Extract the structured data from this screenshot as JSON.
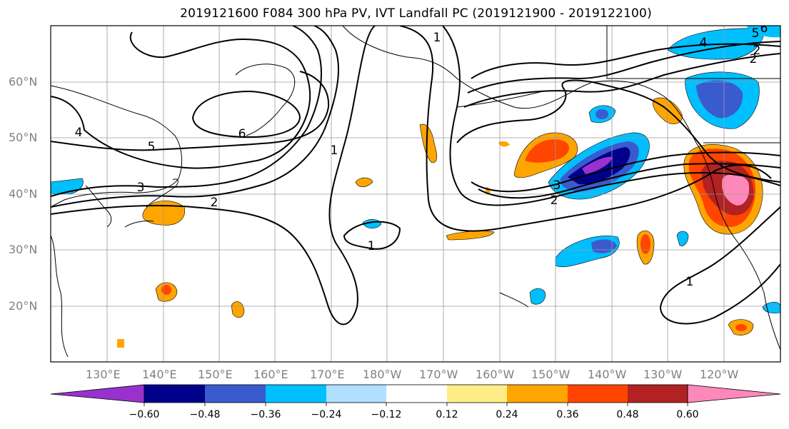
{
  "title": "2019121600 F084 300 hPa PV, IVT Landfall PC (2019121900 - 2019122100)",
  "map": {
    "lat_labels": [
      "60°N",
      "50°N",
      "40°N",
      "30°N",
      "20°N"
    ],
    "lon_labels": [
      "130°E",
      "140°E",
      "150°E",
      "160°E",
      "170°E",
      "180°W",
      "170°W",
      "160°W",
      "150°W",
      "140°W",
      "130°W",
      "120°W"
    ],
    "contour_labels": [
      "6",
      "5",
      "4",
      "3",
      "2",
      "1",
      "1",
      "1",
      "2",
      "3",
      "4",
      "5",
      "2",
      "6",
      "1",
      "2"
    ]
  },
  "colorbar": {
    "ticks": [
      "−0.60",
      "−0.48",
      "−0.36",
      "−0.24",
      "−0.12",
      "0.12",
      "0.24",
      "0.36",
      "0.48",
      "0.60"
    ],
    "colors": [
      "#9932cc",
      "#00008b",
      "#3a5bcd",
      "#00bfff",
      "#b0e0ff",
      "#ffffff",
      "#ffee88",
      "#ffa500",
      "#ff4500",
      "#b22222",
      "#ff88bb"
    ]
  }
}
